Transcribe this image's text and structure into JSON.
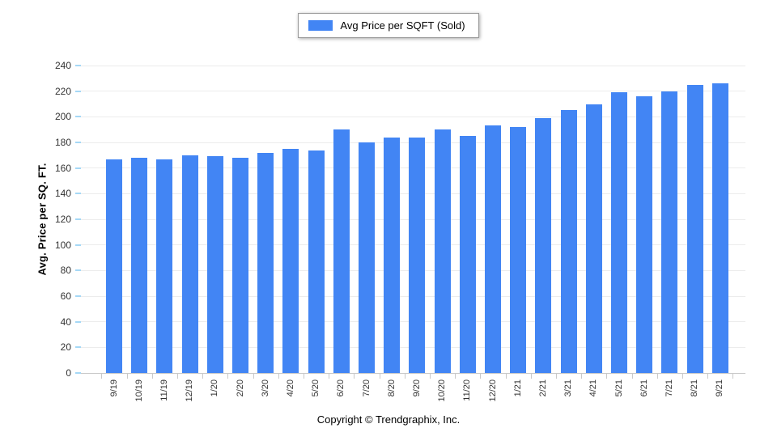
{
  "legend": {
    "label": "Avg Price per SQFT (Sold)",
    "swatch_color": "#4285f4"
  },
  "y_axis": {
    "title": "Avg. Price per SQ. FT.",
    "min": 0,
    "max": 240,
    "step": 20
  },
  "footer": {
    "copyright": "Copyright © Trendgraphix, Inc."
  },
  "colors": {
    "bar": "#4285f4",
    "gridline": "#ececec",
    "axis_line": "#c9c9c9",
    "y_tick": "#a5d8f6",
    "text": "#333333"
  },
  "chart_data": {
    "type": "bar",
    "title": "",
    "series_name": "Avg Price per SQFT (Sold)",
    "categories": [
      "9/19",
      "10/19",
      "11/19",
      "12/19",
      "1/20",
      "2/20",
      "3/20",
      "4/20",
      "5/20",
      "6/20",
      "7/20",
      "8/20",
      "9/20",
      "10/20",
      "11/20",
      "12/20",
      "1/21",
      "2/21",
      "3/21",
      "4/21",
      "5/21",
      "6/21",
      "7/21",
      "8/21",
      "9/21"
    ],
    "values": [
      167,
      168,
      167,
      170,
      169,
      168,
      172,
      175,
      174,
      190,
      180,
      184,
      184,
      190,
      185,
      193,
      192,
      199,
      205,
      210,
      219,
      216,
      220,
      225,
      226
    ],
    "xlabel": "",
    "ylabel": "Avg. Price per SQ. FT.",
    "ylim": [
      0,
      240
    ],
    "ytick_step": 20,
    "grid": true,
    "legend_position": "top-center"
  }
}
